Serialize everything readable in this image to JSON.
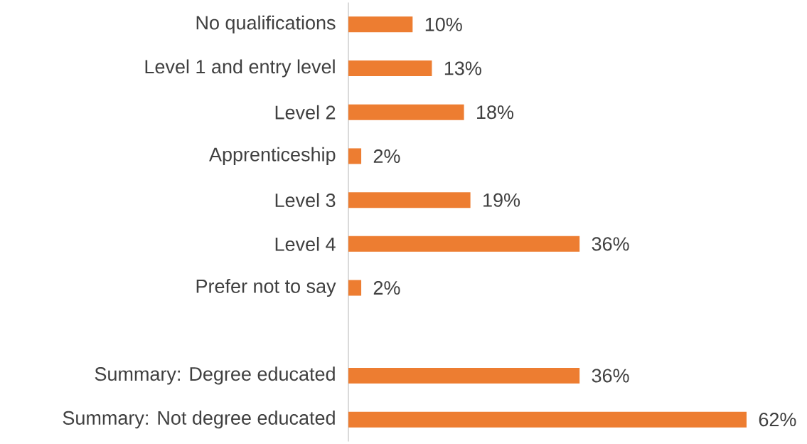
{
  "chart_data": {
    "type": "bar",
    "orientation": "horizontal",
    "categories": [
      "No qualifications",
      "Level 1 and entry level",
      "Level 2",
      "Apprenticeship",
      "Level 3",
      "Level 4",
      "Prefer not to say",
      null,
      "Summary: Degree educated",
      "Summary: Not degree educated"
    ],
    "values": [
      10,
      13,
      18,
      2,
      19,
      36,
      2,
      null,
      36,
      62
    ],
    "value_labels": [
      "10%",
      "13%",
      "18%",
      "2%",
      "19%",
      "36%",
      "2%",
      null,
      "36%",
      "62%"
    ],
    "color": "#ed7d31"
  }
}
